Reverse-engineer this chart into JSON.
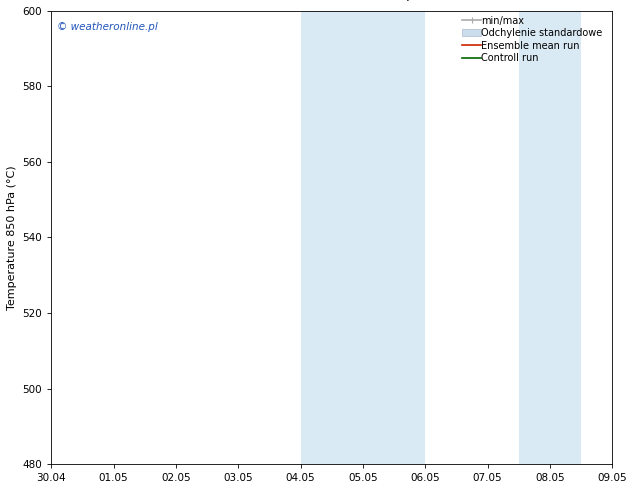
{
  "ylabel": "Temperature 850 hPa (°C)",
  "xlim_dates": [
    "30.04",
    "01.05",
    "02.05",
    "03.05",
    "04.05",
    "05.05",
    "06.05",
    "07.05",
    "08.05",
    "09.05"
  ],
  "xlim": [
    0,
    9
  ],
  "ylim": [
    480,
    600
  ],
  "yticks": [
    480,
    500,
    520,
    540,
    560,
    580,
    600
  ],
  "xtick_positions": [
    0,
    1,
    2,
    3,
    4,
    5,
    6,
    7,
    8,
    9
  ],
  "shade_regions": [
    {
      "x_start": 4.0,
      "x_end": 6.0
    },
    {
      "x_start": 7.5,
      "x_end": 8.5
    }
  ],
  "shade_color": "#daeaf5",
  "background_color": "#ffffff",
  "watermark_text": "© weatheronline.pl",
  "watermark_color": "#2255bb",
  "legend": [
    {
      "label": "min/max",
      "color": "#aaaaaa",
      "lw": 1.2,
      "style": "line_with_caps"
    },
    {
      "label": "Odchylenie standardowe",
      "color": "#ccddee",
      "lw": 6,
      "style": "band"
    },
    {
      "label": "Ensemble mean run",
      "color": "#cc2200",
      "lw": 1.2,
      "style": "line"
    },
    {
      "label": "Controll run",
      "color": "#006600",
      "lw": 1.2,
      "style": "line"
    }
  ],
  "title_fontsize": 9.5,
  "axis_label_fontsize": 8,
  "tick_fontsize": 7.5,
  "legend_fontsize": 7,
  "watermark_fontsize": 7.5
}
